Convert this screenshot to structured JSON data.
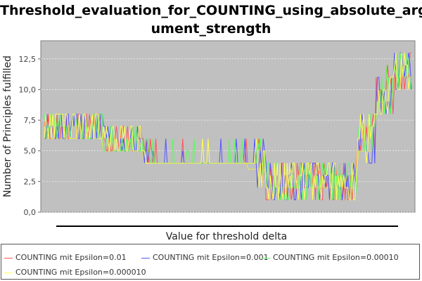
{
  "chart_data": {
    "type": "line",
    "title": "Threshold_evaluation_for_COUNTING_using_absolute_argument_strength",
    "title_lines": [
      "Threshold_evaluation_for_COUNTING_using_absolute_arg",
      "ument_strength"
    ],
    "xlabel": "Value for threshold delta",
    "ylabel": "Number of Principles fulfilled",
    "ylim": [
      0,
      13.75
    ],
    "yticks": [
      "0,0",
      "2,5",
      "5,0",
      "7,5",
      "10,0",
      "12,5"
    ],
    "ytick_values": [
      0,
      2.5,
      5,
      7.5,
      10,
      12.5
    ],
    "x_tick_labels_shown": false,
    "grid": true,
    "legend_position": "bottom",
    "plot_background": "#c0c0c0",
    "segments": [
      {
        "x": [
          0.0,
          0.16
        ],
        "y": 6
      },
      {
        "x": [
          0.16,
          0.27
        ],
        "y": 5
      },
      {
        "x": [
          0.27,
          0.55
        ],
        "y": 4
      },
      {
        "x": [
          0.55,
          0.6
        ],
        "y": 3.5
      },
      {
        "x": [
          0.6,
          0.85
        ],
        "y": 2
      },
      {
        "x": [
          0.85,
          0.9
        ],
        "y": 5
      },
      {
        "x": [
          0.9,
          0.95
        ],
        "y": 9
      },
      {
        "x": [
          0.95,
          1.0
        ],
        "y": 11
      }
    ],
    "series": [
      {
        "name": "COUNTING mit Epsilon=0.01",
        "color": "#ff5555"
      },
      {
        "name": "COUNTING mit Epsilon=0.001",
        "color": "#5555ff"
      },
      {
        "name": "COUNTING mit Epsilon=0.00010",
        "color": "#55ff55"
      },
      {
        "name": "COUNTING mit Epsilon=0.000010",
        "color": "#ffff55"
      }
    ]
  }
}
